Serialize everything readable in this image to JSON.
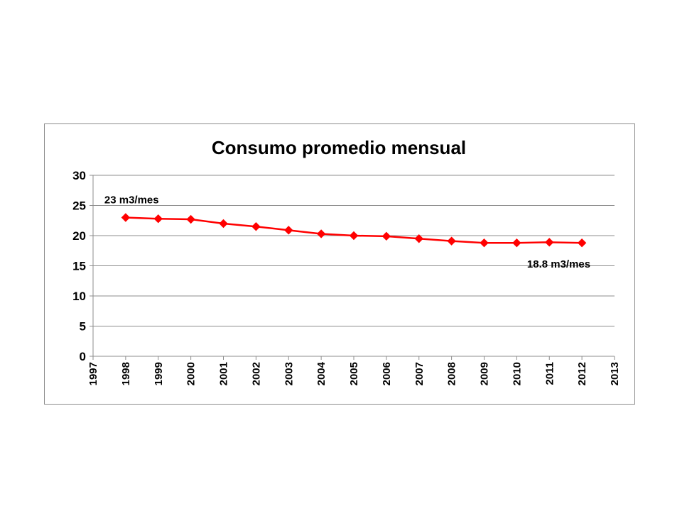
{
  "chart_data": {
    "type": "line",
    "title": "Consumo promedio mensual",
    "xlabel": "",
    "ylabel": "",
    "xlim": [
      1997,
      2013
    ],
    "ylim": [
      0,
      30
    ],
    "y_ticks": [
      0,
      5,
      10,
      15,
      20,
      25,
      30
    ],
    "x_ticks": [
      "1997",
      "1998",
      "1999",
      "2000",
      "2001",
      "2002",
      "2003",
      "2004",
      "2005",
      "2006",
      "2007",
      "2008",
      "2009",
      "2010",
      "2011",
      "2012",
      "2013"
    ],
    "grid": true,
    "legend": "none",
    "series": [
      {
        "color": "#ff0000",
        "marker": "diamond",
        "x": [
          1998,
          1999,
          2000,
          2001,
          2002,
          2003,
          2004,
          2005,
          2006,
          2007,
          2008,
          2009,
          2010,
          2011,
          2012
        ],
        "values": [
          23.0,
          22.8,
          22.7,
          22.0,
          21.5,
          20.9,
          20.3,
          20.0,
          19.9,
          19.5,
          19.1,
          18.8,
          18.8,
          18.9,
          18.8
        ]
      }
    ],
    "annotations": [
      {
        "text": "23 m3/mes",
        "x": 1998,
        "y": 23.0
      },
      {
        "text": "18.8 m3/mes",
        "x": 2012,
        "y": 18.8
      }
    ]
  }
}
